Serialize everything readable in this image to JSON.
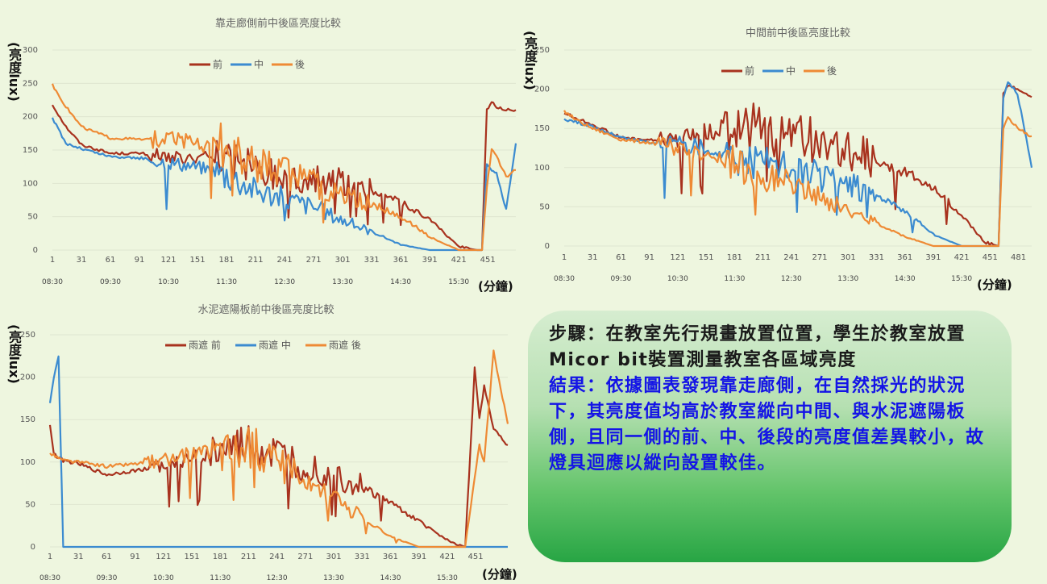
{
  "palette": {
    "front": "#a8321e",
    "middle": "#3b8bd0",
    "back": "#ee8a34"
  },
  "charts": [
    {
      "title": "靠走廊側前中後區亮度比較",
      "ylabel": "(亮度lux)",
      "xunit": "(分鐘)",
      "ymax": 300,
      "yticks": [
        "0",
        "50",
        "100",
        "150",
        "200",
        "250",
        "300"
      ],
      "xticks": [
        "1",
        "31",
        "61",
        "91",
        "121",
        "151",
        "181",
        "211",
        "241",
        "271",
        "301",
        "331",
        "361",
        "391",
        "421",
        "451"
      ],
      "times": [
        "08:30",
        "09:30",
        "10:30",
        "11:30",
        "12:30",
        "13:30",
        "14:30",
        "15:30"
      ],
      "legend": [
        "前",
        "中",
        "後"
      ]
    },
    {
      "title": "中間前中後區亮度比較",
      "ylabel": "(亮度lux)",
      "xunit": "(分鐘)",
      "ymax": 260,
      "yticks": [
        "0",
        "50",
        "100",
        "150",
        "200",
        "250"
      ],
      "xticks": [
        "1",
        "31",
        "61",
        "91",
        "121",
        "151",
        "181",
        "211",
        "241",
        "271",
        "301",
        "331",
        "361",
        "391",
        "421",
        "451",
        "481"
      ],
      "times": [
        "08:30",
        "09:30",
        "10:30",
        "11:30",
        "12:30",
        "13:30",
        "14:30",
        "15:30"
      ],
      "legend": [
        "前",
        "中",
        "後"
      ]
    },
    {
      "title": "水泥遮陽板前中後區亮度比較",
      "ylabel": "(亮度lux)",
      "xunit": "(分鐘)",
      "ymax": 250,
      "yticks": [
        "0",
        "50",
        "100",
        "150",
        "200",
        "250"
      ],
      "xticks": [
        "1",
        "31",
        "61",
        "91",
        "121",
        "151",
        "181",
        "211",
        "241",
        "271",
        "301",
        "331",
        "361",
        "391",
        "421",
        "451"
      ],
      "times": [
        "08:30",
        "09:30",
        "10:30",
        "11:30",
        "12:30",
        "13:30",
        "14:30",
        "15:30"
      ],
      "legend": [
        "雨遮 前",
        "雨遮 中",
        "雨遮 後"
      ]
    }
  ],
  "chart_data": [
    {
      "type": "line",
      "title": "靠走廊側前中後區亮度比較",
      "ylabel": "(亮度lux)",
      "xlabel": "(分鐘)",
      "ylim": [
        0,
        300
      ],
      "xlim": [
        1,
        480
      ],
      "legend": "top",
      "x": [
        1,
        15,
        31,
        61,
        91,
        121,
        151,
        181,
        211,
        241,
        271,
        301,
        331,
        361,
        391,
        421,
        440,
        445,
        450,
        455,
        460,
        470,
        480
      ],
      "series": [
        {
          "name": "前",
          "values": [
            218,
            185,
            158,
            145,
            145,
            140,
            138,
            133,
            122,
            112,
            108,
            100,
            88,
            72,
            45,
            5,
            0,
            0,
            210,
            222,
            215,
            210,
            210
          ]
        },
        {
          "name": "中",
          "values": [
            198,
            160,
            152,
            140,
            138,
            132,
            125,
            115,
            90,
            78,
            65,
            45,
            28,
            8,
            0,
            0,
            0,
            0,
            130,
            120,
            115,
            60,
            160
          ]
        },
        {
          "name": "後",
          "values": [
            248,
            215,
            185,
            168,
            166,
            165,
            160,
            155,
            128,
            115,
            98,
            85,
            70,
            50,
            20,
            0,
            0,
            0,
            95,
            150,
            140,
            110,
            120
          ]
        }
      ]
    },
    {
      "type": "line",
      "title": "中間前中後區亮度比較",
      "ylabel": "(亮度lux)",
      "xlabel": "(分鐘)",
      "ylim": [
        0,
        250
      ],
      "xlim": [
        1,
        495
      ],
      "legend": "top",
      "x": [
        1,
        15,
        31,
        61,
        91,
        121,
        151,
        181,
        211,
        241,
        271,
        301,
        331,
        361,
        391,
        421,
        445,
        460,
        465,
        470,
        480,
        495
      ],
      "series": [
        {
          "name": "前",
          "values": [
            170,
            162,
            155,
            138,
            135,
            135,
            145,
            155,
            148,
            142,
            132,
            120,
            110,
            95,
            75,
            40,
            5,
            0,
            195,
            205,
            200,
            190
          ]
        },
        {
          "name": "中",
          "values": [
            162,
            158,
            152,
            138,
            132,
            130,
            125,
            115,
            108,
            100,
            88,
            78,
            65,
            45,
            15,
            0,
            0,
            0,
            190,
            210,
            195,
            100
          ]
        },
        {
          "name": "後",
          "values": [
            172,
            160,
            150,
            136,
            132,
            125,
            118,
            105,
            90,
            78,
            62,
            45,
            30,
            12,
            0,
            0,
            0,
            0,
            150,
            165,
            150,
            140
          ]
        }
      ]
    },
    {
      "type": "line",
      "title": "水泥遮陽板前中後區亮度比較",
      "ylabel": "(亮度lux)",
      "xlabel": "(分鐘)",
      "ylim": [
        0,
        250
      ],
      "xlim": [
        1,
        485
      ],
      "legend": "top",
      "x": [
        1,
        5,
        10,
        15,
        31,
        61,
        91,
        121,
        151,
        181,
        211,
        241,
        271,
        301,
        331,
        361,
        391,
        421,
        440,
        450,
        455,
        460,
        470,
        485
      ],
      "series": [
        {
          "name": "雨遮 前",
          "values": [
            145,
            110,
            105,
            102,
            98,
            85,
            90,
            95,
            105,
            110,
            118,
            105,
            95,
            85,
            70,
            52,
            30,
            8,
            0,
            210,
            150,
            190,
            140,
            120
          ]
        },
        {
          "name": "雨遮 中",
          "values": [
            170,
            200,
            225,
            0,
            0,
            0,
            0,
            0,
            0,
            0,
            0,
            0,
            0,
            0,
            0,
            0,
            0,
            0,
            0,
            0,
            0,
            0,
            0,
            0
          ]
        },
        {
          "name": "雨遮 後",
          "values": [
            110,
            108,
            105,
            102,
            100,
            95,
            98,
            102,
            110,
            115,
            120,
            100,
            75,
            55,
            35,
            12,
            0,
            0,
            0,
            80,
            120,
            100,
            230,
            145
          ]
        }
      ]
    }
  ],
  "note": {
    "steps": "步驟：在教室先行規畫放置位置，學生於教室放置Micor bit裝置測量教室各區域亮度",
    "result": "結果：依據圖表發現靠走廊側，在自然採光的狀況下，其亮度值均高於教室縱向中間、與水泥遮陽板側，且同一側的前、中、後段的亮度值差異較小，故燈具迴應以縱向設置較佳。"
  }
}
